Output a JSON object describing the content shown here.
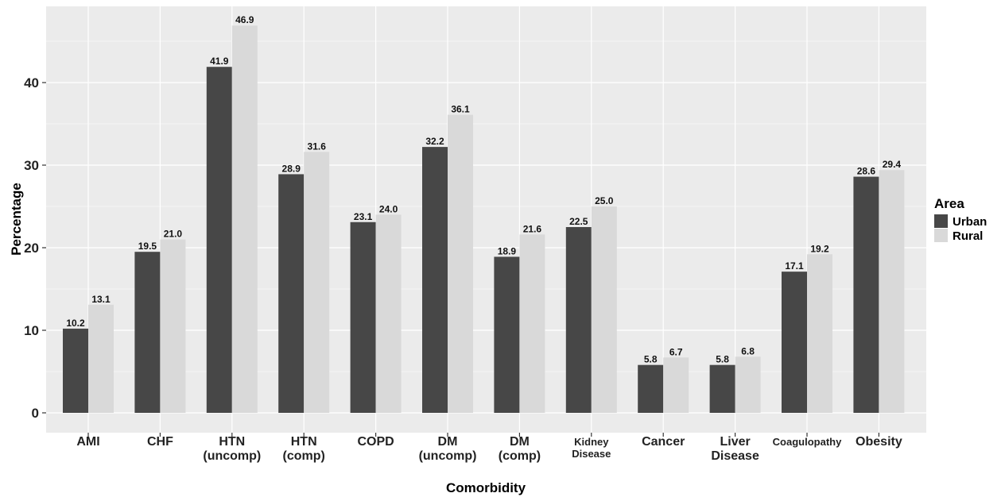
{
  "chart_data": {
    "type": "bar",
    "title": "",
    "xlabel": "Comorbidity",
    "ylabel": "Percentage",
    "ylim": [
      0,
      49
    ],
    "yticks": [
      0,
      10,
      20,
      30,
      40
    ],
    "grid": true,
    "legend_position": "right",
    "legend_title": "Area",
    "categories": [
      [
        "AMI"
      ],
      [
        "CHF"
      ],
      [
        "HTN",
        "(uncomp)"
      ],
      [
        "HTN",
        "(comp)"
      ],
      [
        "COPD"
      ],
      [
        "DM",
        "(uncomp)"
      ],
      [
        "DM",
        "(comp)"
      ],
      [
        "Kidney",
        "Disease"
      ],
      [
        "Cancer"
      ],
      [
        "Liver",
        "Disease"
      ],
      [
        "Coagulopathy"
      ],
      [
        "Obesity"
      ]
    ],
    "series": [
      {
        "name": "Urban",
        "color": "#474747",
        "values": [
          10.2,
          19.5,
          41.9,
          28.9,
          23.1,
          32.2,
          18.9,
          22.5,
          5.8,
          5.8,
          17.1,
          28.6
        ],
        "labels": [
          "10.2",
          "19.5",
          "41.9",
          "28.9",
          "23.1",
          "32.2",
          "18.9",
          "22.5",
          "5.8",
          "5.8",
          "17.1",
          "28.6"
        ]
      },
      {
        "name": "Rural",
        "color": "#d9d9d9",
        "values": [
          13.1,
          21.0,
          46.9,
          31.6,
          24.0,
          36.1,
          21.6,
          25.0,
          6.7,
          6.8,
          19.2,
          29.4
        ],
        "labels": [
          "13.1",
          "21.0",
          "46.9",
          "31.6",
          "24.0",
          "36.1",
          "21.6",
          "25.0",
          "6.7",
          "6.8",
          "19.2",
          "29.4"
        ]
      }
    ],
    "panel_color": "#ebebeb",
    "grid_color": "#ffffff"
  }
}
